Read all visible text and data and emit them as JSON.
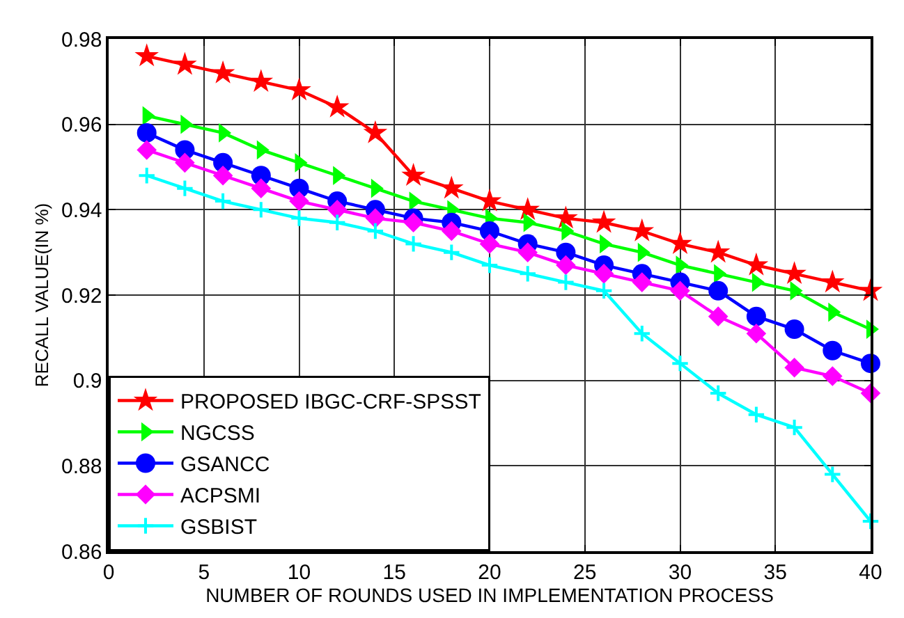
{
  "chart_data": {
    "type": "line",
    "xlabel": "NUMBER OF ROUNDS USED IN IMPLEMENTATION PROCESS",
    "ylabel": "RECALL VALUE(IN %)",
    "x": [
      2,
      4,
      6,
      8,
      10,
      12,
      14,
      16,
      18,
      20,
      22,
      24,
      26,
      28,
      30,
      32,
      34,
      36,
      38,
      40
    ],
    "series": [
      {
        "name": "PROPOSED IBGC-CRF-SPSST",
        "color": "#ff0000",
        "marker": "star",
        "values": [
          0.976,
          0.974,
          0.972,
          0.97,
          0.968,
          0.964,
          0.958,
          0.948,
          0.945,
          0.942,
          0.94,
          0.938,
          0.937,
          0.935,
          0.932,
          0.93,
          0.927,
          0.925,
          0.923,
          0.921
        ]
      },
      {
        "name": "NGCSS",
        "color": "#00ff00",
        "marker": "triangle",
        "values": [
          0.962,
          0.96,
          0.958,
          0.954,
          0.951,
          0.948,
          0.945,
          0.942,
          0.94,
          0.938,
          0.937,
          0.935,
          0.932,
          0.93,
          0.927,
          0.925,
          0.923,
          0.921,
          0.916,
          0.912
        ]
      },
      {
        "name": "GSANCC",
        "color": "#0000ff",
        "marker": "circle",
        "values": [
          0.958,
          0.954,
          0.951,
          0.948,
          0.945,
          0.942,
          0.94,
          0.938,
          0.937,
          0.935,
          0.932,
          0.93,
          0.927,
          0.925,
          0.923,
          0.921,
          0.915,
          0.912,
          0.907,
          0.904
        ]
      },
      {
        "name": "ACPSMI",
        "color": "#ff00ff",
        "marker": "diamond",
        "values": [
          0.954,
          0.951,
          0.948,
          0.945,
          0.942,
          0.94,
          0.938,
          0.937,
          0.935,
          0.932,
          0.93,
          0.927,
          0.925,
          0.923,
          0.921,
          0.915,
          0.911,
          0.903,
          0.901,
          0.897
        ]
      },
      {
        "name": "GSBIST",
        "color": "#00ffff",
        "marker": "cross",
        "values": [
          0.948,
          0.945,
          0.942,
          0.94,
          0.938,
          0.937,
          0.935,
          0.932,
          0.93,
          0.927,
          0.925,
          0.923,
          0.921,
          0.911,
          0.904,
          0.897,
          0.892,
          0.889,
          0.878,
          0.867
        ]
      }
    ],
    "xlim": [
      0,
      40
    ],
    "xticks": [
      0,
      5,
      10,
      15,
      20,
      25,
      30,
      35,
      40
    ],
    "ylim": [
      0.86,
      0.98
    ],
    "yticks": [
      0.86,
      0.88,
      0.9,
      0.92,
      0.94,
      0.96,
      0.98
    ],
    "grid": true,
    "legend": "bottom left",
    "line_style": "solid"
  }
}
